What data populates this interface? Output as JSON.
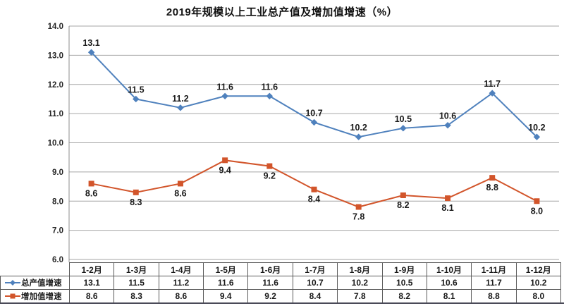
{
  "title": "2019年规模以上工业总产值及增加值增速（%）",
  "colors": {
    "series1": "#4F81BD",
    "series2": "#D2552B",
    "grid": "#A6A6A6",
    "axis": "#8C8C8C",
    "table_border": "#595959",
    "label_text": "#1a1a1a",
    "bottom_edge": "#4a4a58"
  },
  "chart_data": {
    "type": "line",
    "title": "2019年规模以上工业总产值及增加值增速（%）",
    "categories": [
      "1-2月",
      "1-3月",
      "1-4月",
      "1-5月",
      "1-6月",
      "1-7月",
      "1-8月",
      "1-9月",
      "1-10月",
      "1-11月",
      "1-12月"
    ],
    "series": [
      {
        "name": "总产值增速",
        "values": [
          13.1,
          11.5,
          11.2,
          11.6,
          11.6,
          10.7,
          10.2,
          10.5,
          10.6,
          11.7,
          10.2
        ],
        "color": "#4F81BD",
        "marker": "diamond",
        "label_position": "above"
      },
      {
        "name": "增加值增速",
        "values": [
          8.6,
          8.3,
          8.6,
          9.4,
          9.2,
          8.4,
          7.8,
          8.2,
          8.1,
          8.8,
          8.0
        ],
        "color": "#D2552B",
        "marker": "square",
        "label_position": "below"
      }
    ],
    "ylim": [
      6.0,
      14.0
    ],
    "ytick_step": 1.0,
    "yticks": [
      "14.0",
      "13.0",
      "12.0",
      "11.0",
      "10.0",
      "9.0",
      "8.0",
      "7.0",
      "6.0"
    ],
    "grid": true,
    "legend_position": "table-left",
    "data_labels": true
  }
}
